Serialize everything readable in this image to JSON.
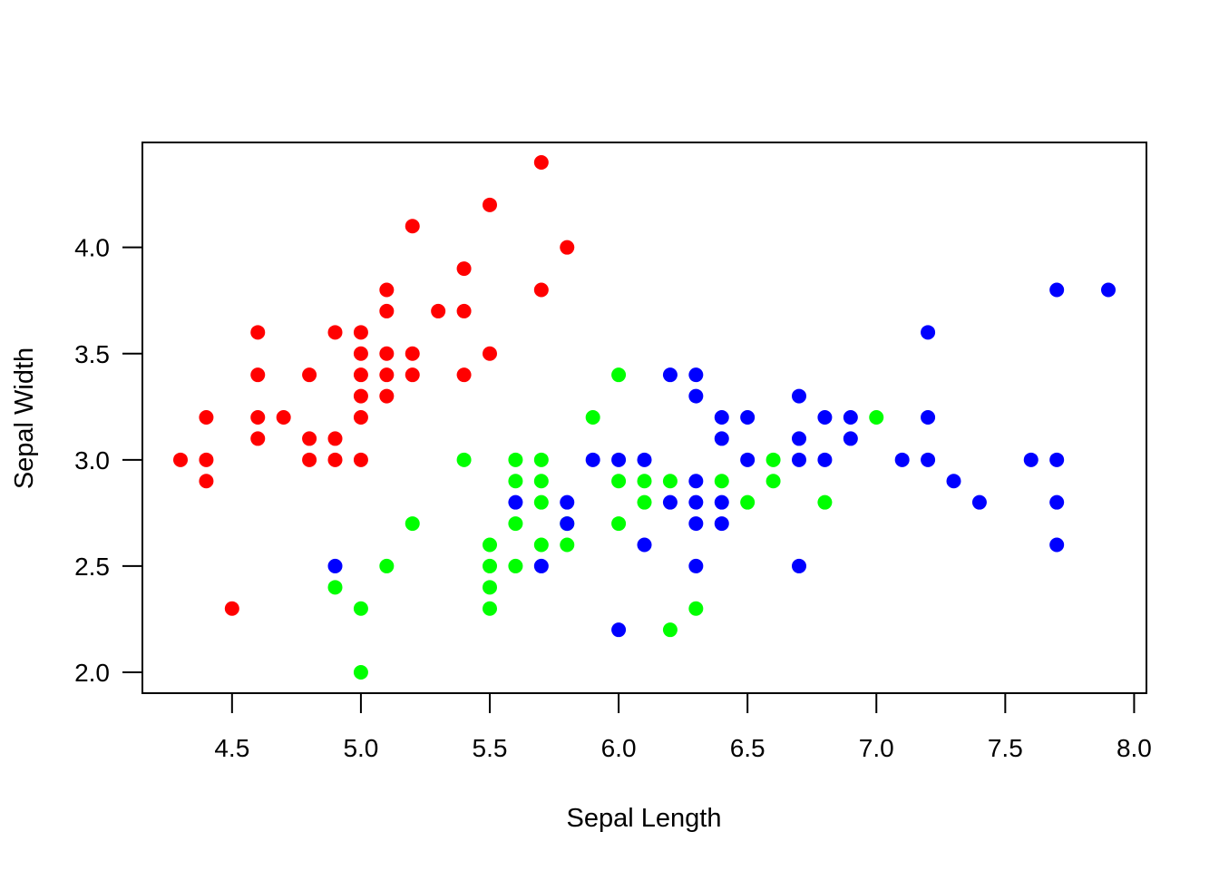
{
  "chart_data": {
    "type": "scatter",
    "title": "",
    "xlabel": "Sepal Length",
    "ylabel": "Sepal Width",
    "xlim": [
      4.3,
      7.9
    ],
    "ylim": [
      2.0,
      4.4
    ],
    "xticks": [
      "4.5",
      "5.0",
      "5.5",
      "6.0",
      "6.5",
      "7.0",
      "7.5",
      "8.0"
    ],
    "yticks": [
      "2.0",
      "2.5",
      "3.0",
      "3.5",
      "4.0"
    ],
    "grid": false,
    "legend": "none",
    "series": [
      {
        "color": "#ff0000",
        "points": [
          [
            4.3,
            3.0
          ],
          [
            4.4,
            3.2
          ],
          [
            4.4,
            3.0
          ],
          [
            4.4,
            2.9
          ],
          [
            4.5,
            2.3
          ],
          [
            4.6,
            3.6
          ],
          [
            4.6,
            3.4
          ],
          [
            4.6,
            3.2
          ],
          [
            4.6,
            3.1
          ],
          [
            4.7,
            3.2
          ],
          [
            4.8,
            3.4
          ],
          [
            4.8,
            3.1
          ],
          [
            4.8,
            3.0
          ],
          [
            4.9,
            3.6
          ],
          [
            4.9,
            3.1
          ],
          [
            4.9,
            3.0
          ],
          [
            5.0,
            3.6
          ],
          [
            5.0,
            3.5
          ],
          [
            5.0,
            3.4
          ],
          [
            5.0,
            3.3
          ],
          [
            5.0,
            3.2
          ],
          [
            5.0,
            3.0
          ],
          [
            5.1,
            3.8
          ],
          [
            5.1,
            3.7
          ],
          [
            5.1,
            3.5
          ],
          [
            5.1,
            3.4
          ],
          [
            5.1,
            3.3
          ],
          [
            5.2,
            4.1
          ],
          [
            5.2,
            3.5
          ],
          [
            5.2,
            3.4
          ],
          [
            5.3,
            3.7
          ],
          [
            5.4,
            3.9
          ],
          [
            5.4,
            3.7
          ],
          [
            5.4,
            3.4
          ],
          [
            5.5,
            4.2
          ],
          [
            5.5,
            3.5
          ],
          [
            5.7,
            4.4
          ],
          [
            5.7,
            3.8
          ],
          [
            5.8,
            4.0
          ]
        ]
      },
      {
        "color": "#00ff00",
        "points": [
          [
            4.9,
            2.4
          ],
          [
            5.0,
            2.3
          ],
          [
            5.0,
            2.0
          ],
          [
            5.1,
            2.5
          ],
          [
            5.2,
            2.7
          ],
          [
            5.4,
            3.0
          ],
          [
            5.5,
            2.6
          ],
          [
            5.5,
            2.5
          ],
          [
            5.5,
            2.4
          ],
          [
            5.5,
            2.3
          ],
          [
            5.6,
            3.0
          ],
          [
            5.6,
            2.9
          ],
          [
            5.6,
            2.7
          ],
          [
            5.6,
            2.5
          ],
          [
            5.7,
            3.0
          ],
          [
            5.7,
            2.9
          ],
          [
            5.7,
            2.8
          ],
          [
            5.7,
            2.6
          ],
          [
            5.8,
            2.7
          ],
          [
            5.8,
            2.6
          ],
          [
            5.9,
            3.2
          ],
          [
            6.0,
            3.4
          ],
          [
            6.0,
            2.9
          ],
          [
            6.0,
            2.7
          ],
          [
            6.1,
            2.9
          ],
          [
            6.1,
            2.8
          ],
          [
            6.2,
            2.9
          ],
          [
            6.2,
            2.2
          ],
          [
            6.3,
            2.3
          ],
          [
            6.4,
            2.9
          ],
          [
            6.5,
            2.8
          ],
          [
            6.6,
            3.0
          ],
          [
            6.6,
            2.9
          ],
          [
            6.8,
            2.8
          ],
          [
            7.0,
            3.2
          ]
        ]
      },
      {
        "color": "#0000ff",
        "points": [
          [
            4.9,
            2.5
          ],
          [
            5.6,
            2.8
          ],
          [
            5.7,
            2.5
          ],
          [
            5.8,
            2.8
          ],
          [
            5.8,
            2.7
          ],
          [
            5.9,
            3.0
          ],
          [
            6.0,
            3.0
          ],
          [
            6.0,
            2.2
          ],
          [
            6.1,
            3.0
          ],
          [
            6.1,
            2.6
          ],
          [
            6.2,
            3.4
          ],
          [
            6.2,
            2.8
          ],
          [
            6.3,
            3.4
          ],
          [
            6.3,
            3.3
          ],
          [
            6.3,
            2.9
          ],
          [
            6.3,
            2.8
          ],
          [
            6.3,
            2.7
          ],
          [
            6.3,
            2.5
          ],
          [
            6.4,
            3.2
          ],
          [
            6.4,
            3.1
          ],
          [
            6.4,
            2.8
          ],
          [
            6.4,
            2.7
          ],
          [
            6.5,
            3.2
          ],
          [
            6.5,
            3.0
          ],
          [
            6.7,
            3.3
          ],
          [
            6.7,
            3.1
          ],
          [
            6.7,
            3.0
          ],
          [
            6.7,
            2.5
          ],
          [
            6.8,
            3.2
          ],
          [
            6.8,
            3.0
          ],
          [
            6.9,
            3.2
          ],
          [
            6.9,
            3.1
          ],
          [
            7.1,
            3.0
          ],
          [
            7.2,
            3.6
          ],
          [
            7.2,
            3.2
          ],
          [
            7.2,
            3.0
          ],
          [
            7.3,
            2.9
          ],
          [
            7.4,
            2.8
          ],
          [
            7.6,
            3.0
          ],
          [
            7.7,
            3.8
          ],
          [
            7.7,
            3.0
          ],
          [
            7.7,
            2.8
          ],
          [
            7.7,
            2.6
          ],
          [
            7.9,
            3.8
          ]
        ]
      }
    ]
  }
}
